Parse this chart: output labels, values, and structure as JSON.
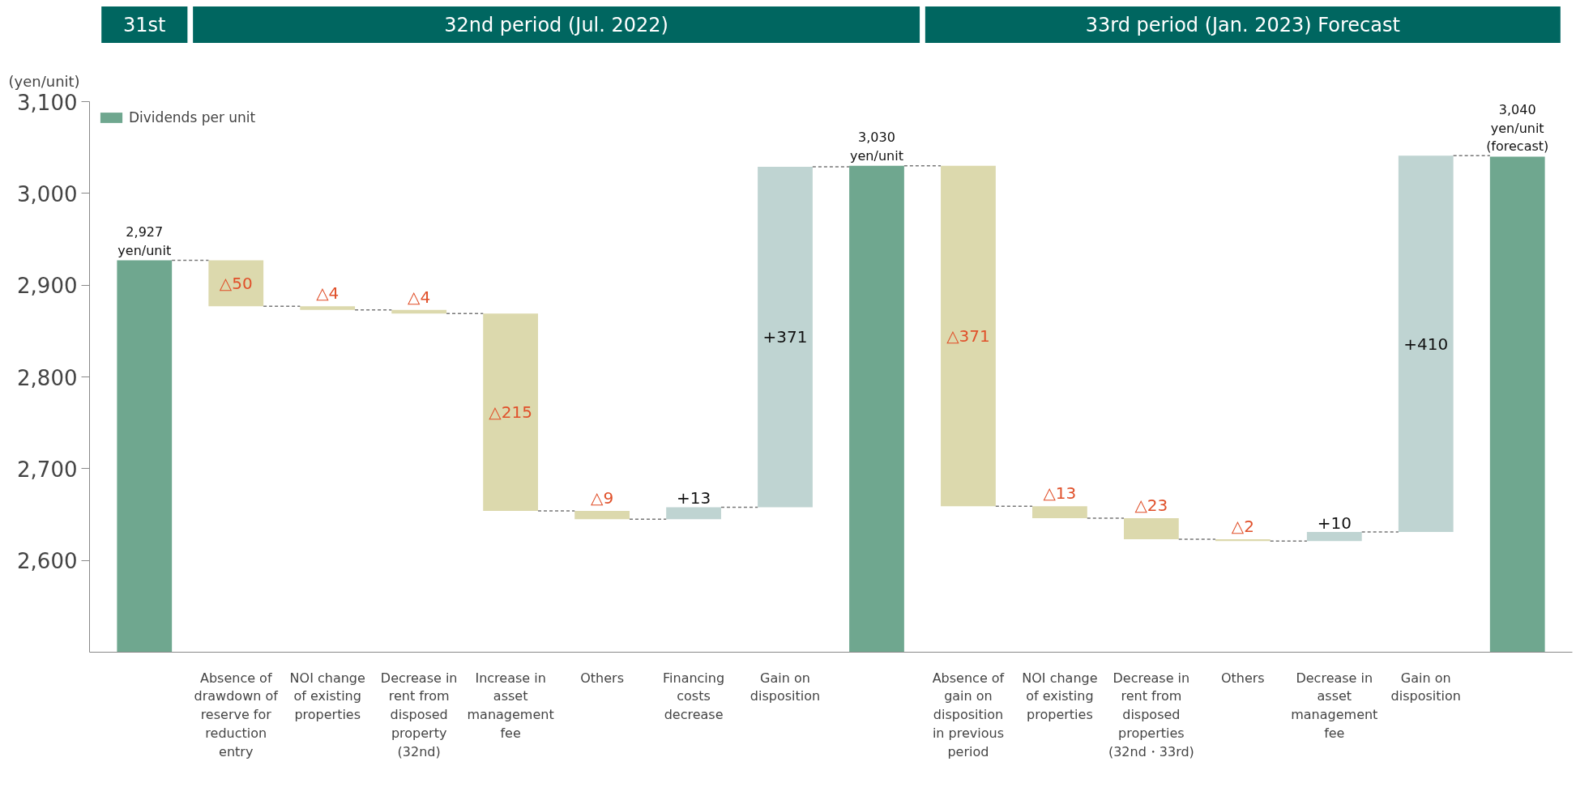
{
  "chart_data": {
    "type": "bar",
    "ylabel": "(yen/unit)",
    "categories": [
      null,
      "Absence of drawdown of reserve for reduction entry",
      "NOI change of existing properties",
      "Decrease in rent from disposed property (32nd)",
      "Increase in asset management fee",
      "Others",
      "Financing costs decrease",
      "Gain on disposition",
      null,
      "Absence of gain on disposition in previous period",
      "NOI change of existing properties",
      "Decrease in rent from disposed properties (32nd・33rd)",
      "Others",
      "Decrease in asset management fee",
      "Gain on disposition",
      null
    ],
    "series": [
      {
        "name": "Dividends per unit",
        "color": "#6fa78f",
        "values": [
          2927,
          null,
          null,
          null,
          null,
          null,
          null,
          null,
          3030,
          null,
          null,
          null,
          null,
          null,
          null,
          3040
        ],
        "value_labels": [
          "2,927\nyen/unit",
          null,
          null,
          null,
          null,
          null,
          null,
          null,
          "3,030\nyen/unit",
          null,
          null,
          null,
          null,
          null,
          null,
          "3,040\nyen/unit\n(forecast)"
        ]
      },
      {
        "colors": [
          null,
          "#dcd9ad",
          "#dcd9ad",
          "#dcd9ad",
          "#dcd9ad",
          "#dcd9ad",
          "#bfd4d2",
          "#bfd4d2",
          null,
          "#dcd9ad",
          "#dcd9ad",
          "#dcd9ad",
          "#dcd9ad",
          "#bfd4d2",
          "#bfd4d2",
          null
        ],
        "base": [
          null,
          2927,
          2877,
          2873,
          2869,
          2654,
          2645,
          2658,
          null,
          3030,
          2659,
          2646,
          2623,
          2621,
          2631,
          null
        ],
        "values": [
          null,
          -50,
          -4,
          -4,
          -215,
          -9,
          13,
          371,
          null,
          -371,
          -13,
          -23,
          -2,
          10,
          410,
          null
        ],
        "value_labels": [
          null,
          "△50",
          "△4",
          "△4",
          "△215",
          "△9",
          "+13",
          "+371",
          null,
          "△371",
          "△13",
          "△23",
          "△2",
          "+10",
          "+410",
          null
        ]
      }
    ],
    "ylim": [
      2500,
      3100
    ],
    "yticks": [
      {
        "value": 2600,
        "label": "2,600"
      },
      {
        "value": 2700,
        "label": "2,700"
      },
      {
        "value": 2800,
        "label": "2,800"
      },
      {
        "value": 2900,
        "label": "2,900"
      },
      {
        "value": 3000,
        "label": "3,000"
      },
      {
        "value": 3100,
        "label": "3,100"
      }
    ],
    "grid": false,
    "legend": "top left",
    "annotations": [
      "31st",
      "32nd period (Jul. 2022)",
      "33rd period (Jan. 2023) Forecast"
    ]
  }
}
